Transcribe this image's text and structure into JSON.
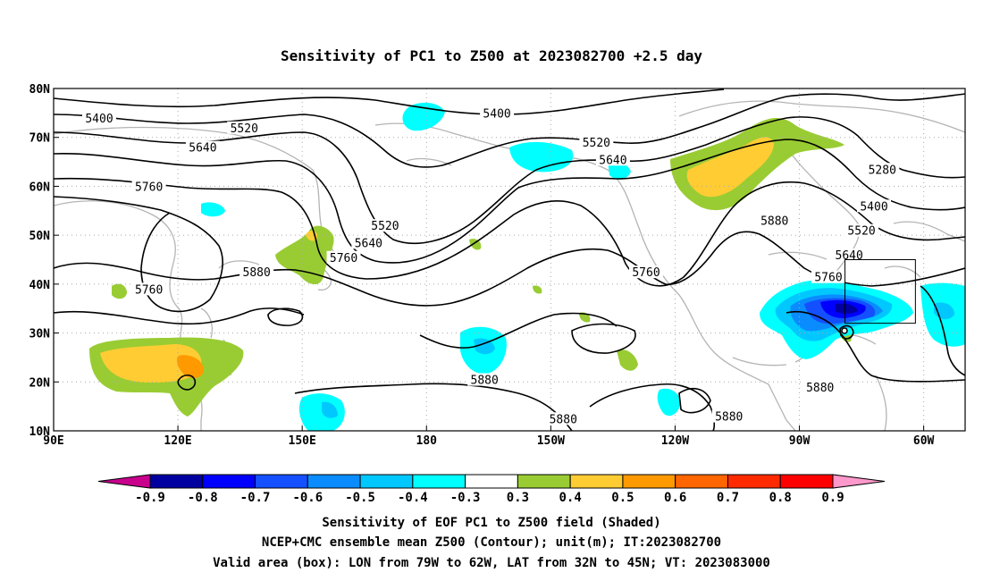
{
  "title": "Sensitivity of PC1 to Z500 at 2023082700 +2.5 day",
  "map": {
    "lon_range_deg_east": [
      90,
      310
    ],
    "lat_range_deg": [
      10,
      80
    ],
    "x_ticks": [
      {
        "lon": 90,
        "label": "90E"
      },
      {
        "lon": 120,
        "label": "120E"
      },
      {
        "lon": 150,
        "label": "150E"
      },
      {
        "lon": 180,
        "label": "180"
      },
      {
        "lon": 210,
        "label": "150W"
      },
      {
        "lon": 240,
        "label": "120W"
      },
      {
        "lon": 270,
        "label": "90W"
      },
      {
        "lon": 300,
        "label": "60W"
      }
    ],
    "y_ticks": [
      {
        "lat": 80,
        "label": "80N"
      },
      {
        "lat": 70,
        "label": "70N"
      },
      {
        "lat": 60,
        "label": "60N"
      },
      {
        "lat": 50,
        "label": "50N"
      },
      {
        "lat": 40,
        "label": "40N"
      },
      {
        "lat": 30,
        "label": "30N"
      },
      {
        "lat": 20,
        "label": "20N"
      },
      {
        "lat": 10,
        "label": "10N"
      }
    ],
    "grid": "dotted",
    "contour_labels": [
      {
        "lon": 101,
        "lat": 74,
        "text": "5400"
      },
      {
        "lon": 136,
        "lat": 72,
        "text": "5520"
      },
      {
        "lon": 126,
        "lat": 68,
        "text": "5640"
      },
      {
        "lon": 113,
        "lat": 60,
        "text": "5760"
      },
      {
        "lon": 113,
        "lat": 39,
        "text": "5760"
      },
      {
        "lon": 139,
        "lat": 42.5,
        "text": "5880"
      },
      {
        "lon": 197,
        "lat": 75,
        "text": "5400"
      },
      {
        "lon": 221,
        "lat": 69,
        "text": "5520"
      },
      {
        "lon": 225,
        "lat": 65.5,
        "text": "5640"
      },
      {
        "lon": 170,
        "lat": 52,
        "text": "5520"
      },
      {
        "lon": 166,
        "lat": 48.5,
        "text": "5640"
      },
      {
        "lon": 160,
        "lat": 45.5,
        "text": "5760"
      },
      {
        "lon": 233,
        "lat": 42.5,
        "text": "5760"
      },
      {
        "lon": 264,
        "lat": 53,
        "text": "5880"
      },
      {
        "lon": 290,
        "lat": 63.5,
        "text": "5280"
      },
      {
        "lon": 288,
        "lat": 56,
        "text": "5400"
      },
      {
        "lon": 285,
        "lat": 51,
        "text": "5520"
      },
      {
        "lon": 282,
        "lat": 46,
        "text": "5640"
      },
      {
        "lon": 277,
        "lat": 41.5,
        "text": "5760"
      },
      {
        "lon": 194,
        "lat": 20.5,
        "text": "5880"
      },
      {
        "lon": 213,
        "lat": 12.5,
        "text": "5880"
      },
      {
        "lon": 253,
        "lat": 13,
        "text": "5880"
      },
      {
        "lon": 275,
        "lat": 19,
        "text": "5880"
      }
    ],
    "valid_box": {
      "lon_min": 281,
      "lon_max": 298,
      "lat_min": 32,
      "lat_max": 45
    }
  },
  "colorbar": {
    "labels": [
      "-0.9",
      "-0.8",
      "-0.7",
      "-0.6",
      "-0.5",
      "-0.4",
      "-0.3",
      "0.3",
      "0.4",
      "0.5",
      "0.6",
      "0.7",
      "0.8",
      "0.9"
    ],
    "colors": [
      "#c8008c",
      "#0000a0",
      "#0000ff",
      "#1450ff",
      "#0a8cff",
      "#00c8ff",
      "#00ffff",
      "#ffffff",
      "#99cc33",
      "#ffcc33",
      "#ff9900",
      "#ff6600",
      "#ff2a00",
      "#ff0000",
      "#ff99cc"
    ]
  },
  "footer": {
    "line1": "Sensitivity of EOF PC1 to Z500 field (Shaded)",
    "line2": "NCEP+CMC ensemble mean Z500 (Contour); unit(m); IT:2023082700",
    "line3": "Valid area (box): LON from 79W to 62W, LAT from 32N to 45N; VT: 2023083000"
  }
}
